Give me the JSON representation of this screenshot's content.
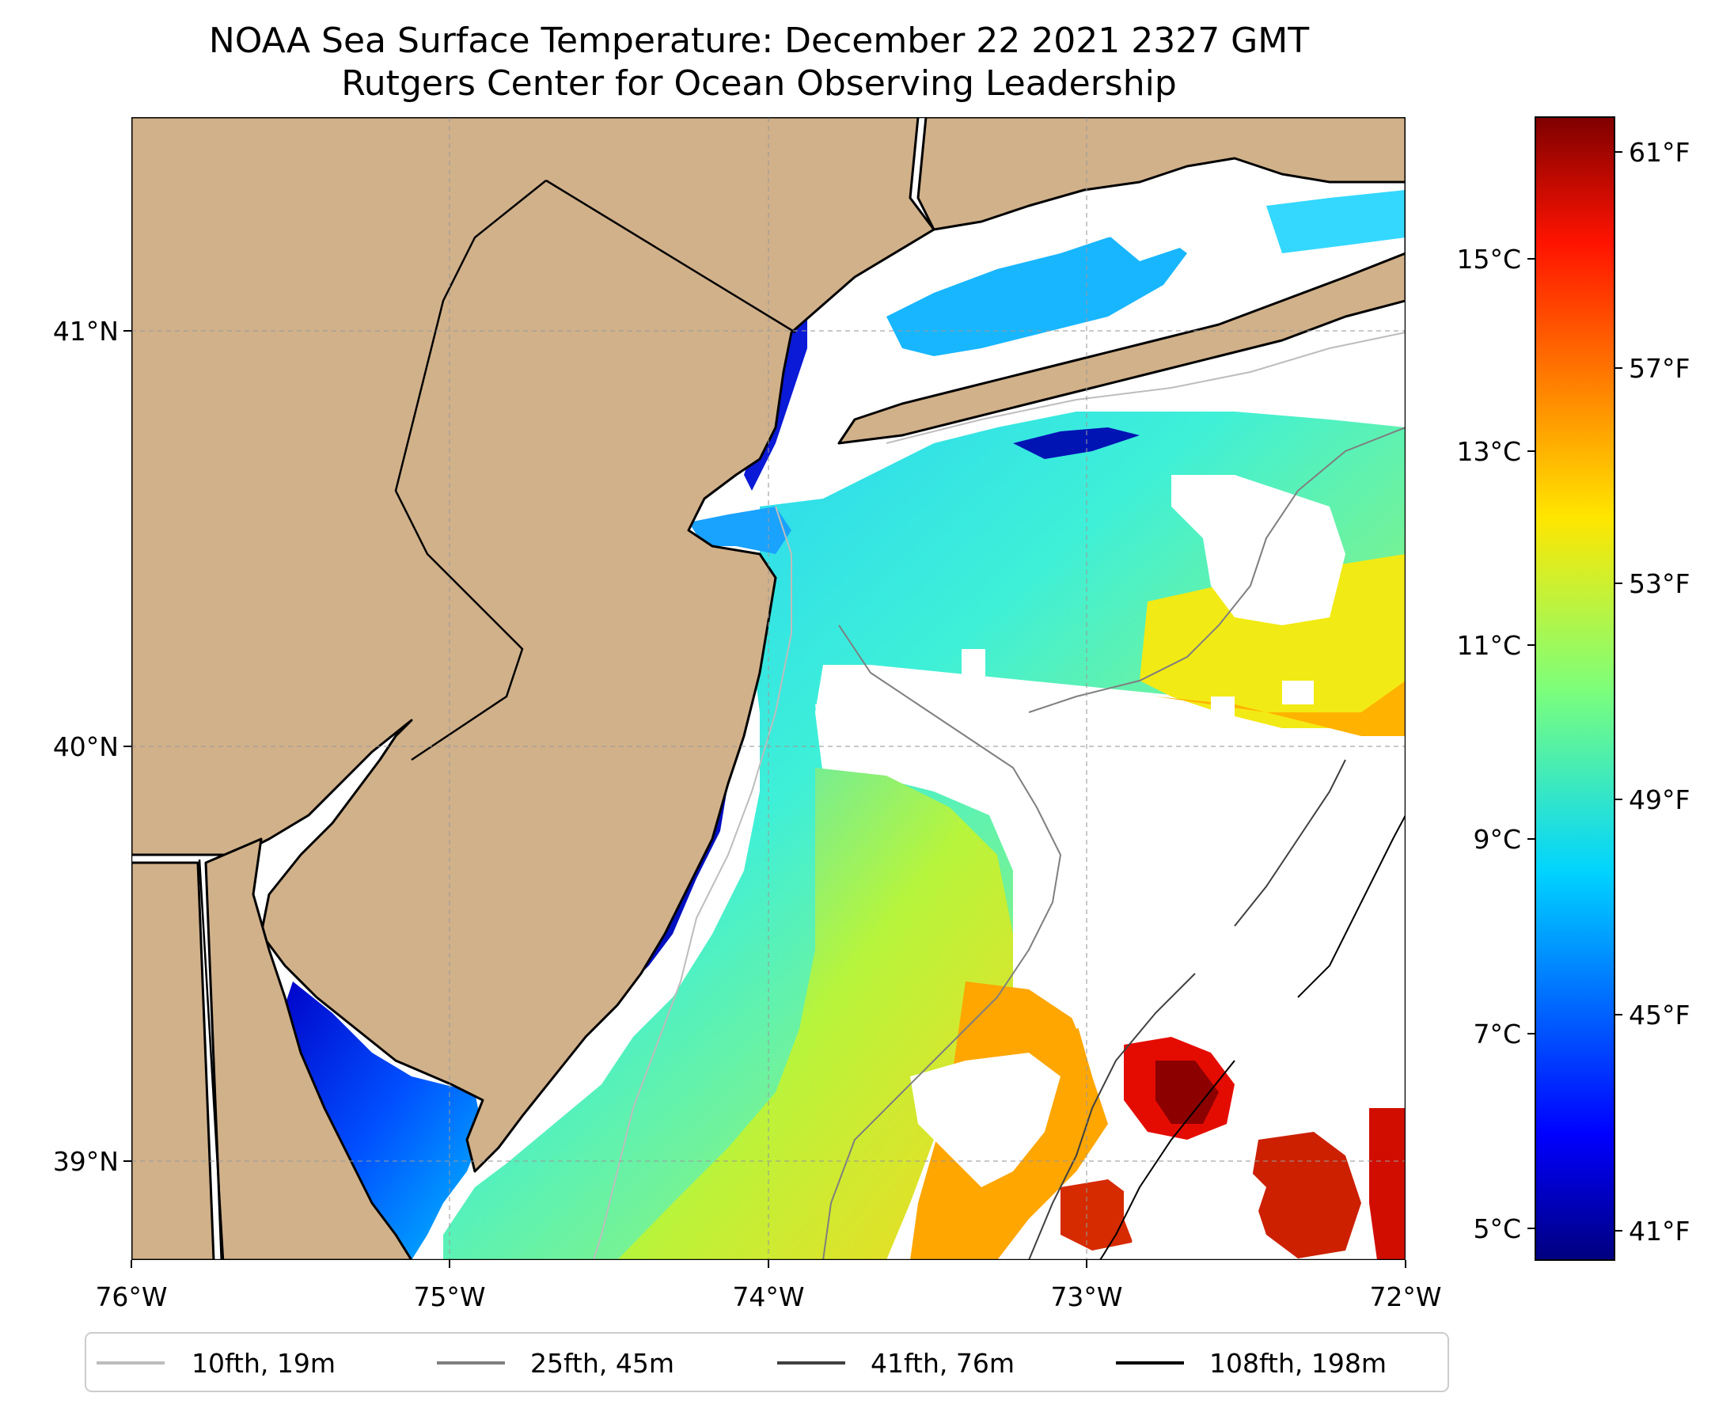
{
  "title": {
    "line1": "NOAA Sea Surface Temperature: December 22 2021 2327 GMT",
    "line2": "Rutgers Center for Ocean Observing Leadership"
  },
  "map": {
    "lon_range": [
      -76,
      -72
    ],
    "lat_range": [
      38.75,
      41.5
    ],
    "x_ticks": [
      "76°W",
      "75°W",
      "74°W",
      "73°W",
      "72°W"
    ],
    "y_ticks": [
      "41°N",
      "40°N",
      "39°N"
    ],
    "gridlines": true
  },
  "colorbar": {
    "celsius_ticks": [
      "15°C",
      "13°C",
      "11°C",
      "9°C",
      "7°C",
      "5°C"
    ],
    "fahrenheit_ticks": [
      "61°F",
      "57°F",
      "53°F",
      "49°F",
      "45°F",
      "41°F"
    ],
    "colormap": "jet",
    "range_f": [
      40.5,
      62.5
    ]
  },
  "legend": {
    "placement": "bottom-center",
    "items": [
      {
        "label": "10fth, 19m",
        "color": "#bdbdbd"
      },
      {
        "label": "25fth, 45m",
        "color": "#7f7f7f"
      },
      {
        "label": "41fth, 76m",
        "color": "#404040"
      },
      {
        "label": "108fth, 198m",
        "color": "#000000"
      }
    ]
  },
  "colors": {
    "land": "#d1b18a",
    "no_data": "#ffffff",
    "coastline": "#000000"
  }
}
